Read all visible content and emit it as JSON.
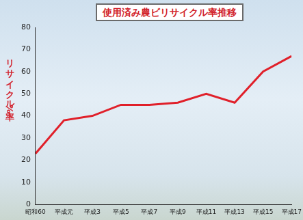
{
  "chart_data": {
    "type": "line",
    "title": "使用済み農ビリサイクル率推移",
    "y_label": "リサイクル率%",
    "categories": [
      "昭和60",
      "平成元",
      "平成3",
      "平成5",
      "平成7",
      "平成9",
      "平成11",
      "平成13",
      "平成15",
      "平成17"
    ],
    "values": [
      23,
      38,
      40,
      45,
      45,
      46,
      50,
      46,
      60,
      67
    ],
    "color": "#e0202a",
    "ylim": [
      0,
      80
    ],
    "yticks": [
      0,
      10,
      20,
      30,
      40,
      50,
      60,
      70,
      80
    ],
    "grid": false,
    "marker": "none",
    "line_style": "solid"
  }
}
